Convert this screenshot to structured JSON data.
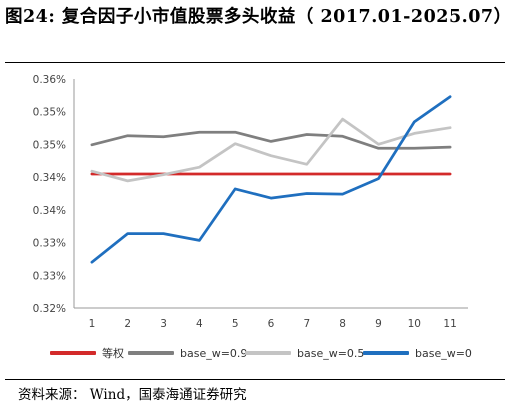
{
  "figure": {
    "title": "图24:  复合因子小市值股票多头收益（ 2017.01-2025.07）",
    "source": "资料来源：  Wind，国泰海通证券研究"
  },
  "chart_data": {
    "type": "line",
    "title": "",
    "xlabel": "",
    "ylabel": "",
    "categories": [
      "1",
      "2",
      "3",
      "4",
      "5",
      "6",
      "7",
      "8",
      "9",
      "10",
      "11"
    ],
    "y_tick_labels": [
      "0.32%",
      "0.33%",
      "0.33%",
      "0.34%",
      "0.34%",
      "0.35%",
      "0.35%",
      "0.36%"
    ],
    "ylim": [
      0.32,
      0.36
    ],
    "grid": false,
    "legend_position": "bottom",
    "series": [
      {
        "name": "等权",
        "color": "#d32a2a",
        "values": [
          0.3434,
          0.3434,
          0.3434,
          0.3434,
          0.3434,
          0.3434,
          0.3434,
          0.3434,
          0.3434,
          0.3434,
          0.3434
        ]
      },
      {
        "name": "base_w=0.9",
        "color": "#7f7f7f",
        "values": [
          0.3485,
          0.3501,
          0.3499,
          0.3507,
          0.3507,
          0.3491,
          0.3503,
          0.35,
          0.3479,
          0.3479,
          0.3481
        ]
      },
      {
        "name": "base_w=0.5",
        "color": "#c4c4c4",
        "values": [
          0.3439,
          0.3422,
          0.3433,
          0.3446,
          0.3487,
          0.3466,
          0.3451,
          0.353,
          0.3486,
          0.3505,
          0.3515
        ]
      },
      {
        "name": "base_w=0",
        "color": "#1f6fbf",
        "values": [
          0.328,
          0.333,
          0.333,
          0.3318,
          0.3408,
          0.3392,
          0.34,
          0.3399,
          0.3426,
          0.3525,
          0.3569
        ]
      }
    ]
  }
}
